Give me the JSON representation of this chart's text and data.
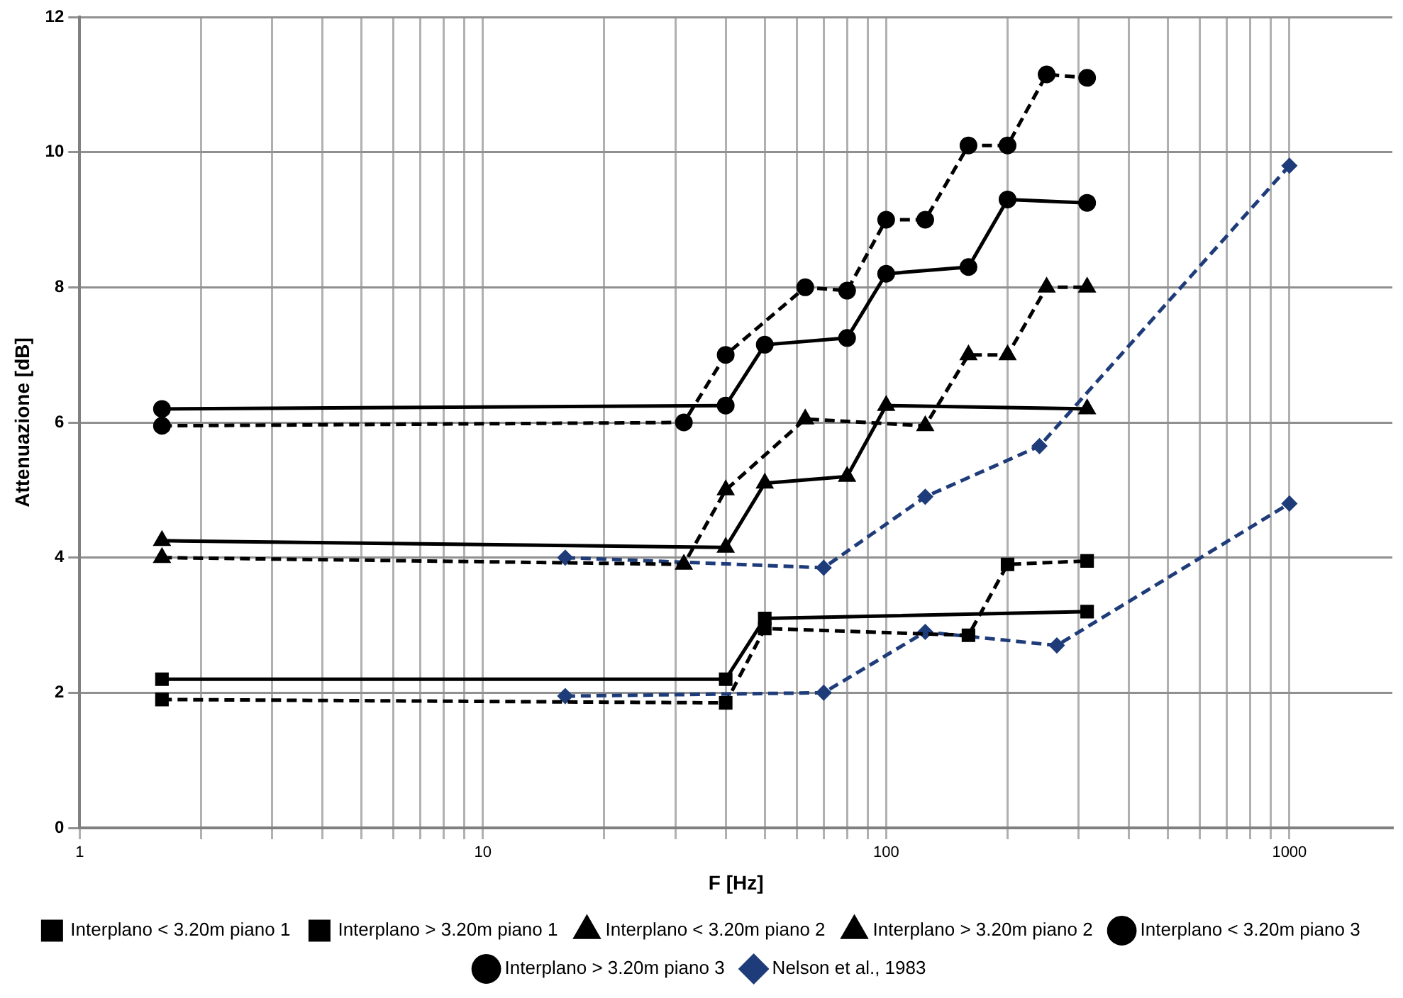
{
  "chart_data": {
    "type": "line",
    "xlabel": "F [Hz]",
    "ylabel": "Attenuazione [dB]",
    "log": "x",
    "grid": true,
    "legend": "bottom",
    "xlim": [
      1,
      1800
    ],
    "xticks": [
      1,
      {
        "value": 2,
        "label": null
      },
      {
        "value": 3,
        "label": null
      },
      {
        "value": 4,
        "label": null
      },
      {
        "value": 5,
        "label": null
      },
      {
        "value": 6,
        "label": null
      },
      {
        "value": 7,
        "label": null
      },
      {
        "value": 8,
        "label": null
      },
      {
        "value": 9,
        "label": null
      },
      10,
      {
        "value": 20,
        "label": null
      },
      {
        "value": 30,
        "label": null
      },
      {
        "value": 40,
        "label": null
      },
      {
        "value": 50,
        "label": null
      },
      {
        "value": 60,
        "label": null
      },
      {
        "value": 70,
        "label": null
      },
      {
        "value": 80,
        "label": null
      },
      {
        "value": 90,
        "label": null
      },
      100,
      {
        "value": 200,
        "label": null
      },
      {
        "value": 300,
        "label": null
      },
      {
        "value": 400,
        "label": null
      },
      {
        "value": 500,
        "label": null
      },
      {
        "value": 600,
        "label": null
      },
      {
        "value": 700,
        "label": null
      },
      {
        "value": 800,
        "label": null
      },
      {
        "value": 900,
        "label": null
      },
      1000
    ],
    "ylim": [
      0,
      12
    ],
    "yticks": [
      0,
      2,
      4,
      6,
      8,
      10,
      12
    ],
    "series": [
      {
        "name": "Interplano < 3.20m piano 1",
        "color": "#000000",
        "marker": "square",
        "line_style": "solid",
        "x": [
          1.6,
          40,
          50,
          315
        ],
        "values": [
          2.2,
          2.2,
          3.1,
          3.2
        ]
      },
      {
        "name": "Interplano > 3.20m piano 1",
        "color": "#000000",
        "marker": "square",
        "line_style": "dashed",
        "x": [
          1.6,
          40,
          50,
          160,
          200,
          315
        ],
        "values": [
          1.9,
          1.85,
          2.95,
          2.85,
          3.9,
          3.95
        ]
      },
      {
        "name": "Interplano < 3.20m piano 2",
        "color": "#000000",
        "marker": "triangle",
        "line_style": "solid",
        "x": [
          1.6,
          40,
          50,
          80,
          100,
          315
        ],
        "values": [
          4.25,
          4.15,
          5.1,
          5.2,
          6.25,
          6.2
        ]
      },
      {
        "name": "Interplano > 3.20m piano 2",
        "color": "#000000",
        "marker": "triangle",
        "line_style": "dashed",
        "x": [
          1.6,
          31.5,
          40,
          63,
          125,
          160,
          200,
          250,
          315
        ],
        "values": [
          4.0,
          3.9,
          5.0,
          6.05,
          5.95,
          7.0,
          7.0,
          8.0,
          8.0
        ]
      },
      {
        "name": "Interplano < 3.20m piano 3",
        "color": "#000000",
        "marker": "circle",
        "line_style": "solid",
        "x": [
          1.6,
          40,
          50,
          80,
          100,
          160,
          200,
          315
        ],
        "values": [
          6.2,
          6.25,
          7.15,
          7.25,
          8.2,
          8.3,
          9.3,
          9.25
        ]
      },
      {
        "name": "Interplano > 3.20m piano 3",
        "color": "#000000",
        "marker": "circle",
        "line_style": "dashed",
        "x": [
          1.6,
          31.5,
          40,
          63,
          80,
          100,
          125,
          160,
          200,
          250,
          315
        ],
        "values": [
          5.95,
          6.0,
          7.0,
          8.0,
          7.95,
          9.0,
          9.0,
          10.1,
          10.1,
          11.15,
          11.1
        ]
      },
      {
        "name": "Nelson et al., 1983",
        "color": "#1f3c7a",
        "marker": "diamond",
        "line_style": "dashed",
        "x": [
          16,
          70,
          125,
          265,
          1000
        ],
        "values": [
          1.95,
          2.0,
          2.9,
          2.7,
          4.8
        ]
      },
      {
        "color": "#1f3c7a",
        "marker": "diamond",
        "line_style": "dashed",
        "x": [
          16,
          70,
          125,
          240,
          1000
        ],
        "values": [
          4.0,
          3.85,
          4.9,
          5.65,
          9.8
        ]
      }
    ]
  }
}
